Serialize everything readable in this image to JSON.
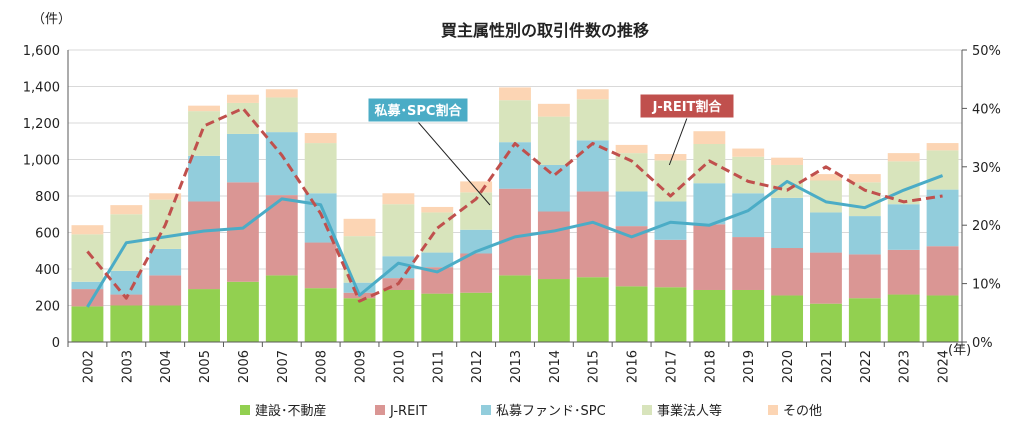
{
  "chart_data": {
    "type": "bar",
    "stacked": true,
    "title": "買主属性別の取引件数の推移",
    "y_unit_label": "（件）",
    "x_unit_label": "(年)",
    "categories": [
      "2002",
      "2003",
      "2004",
      "2005",
      "2006",
      "2007",
      "2008",
      "2009",
      "2010",
      "2011",
      "2012",
      "2013",
      "2014",
      "2015",
      "2016",
      "2017",
      "2018",
      "2019",
      "2020",
      "2021",
      "2022",
      "2023",
      "2024"
    ],
    "ylim": [
      0,
      1600
    ],
    "y_ticks": [
      0,
      200,
      400,
      600,
      800,
      1000,
      1200,
      1400,
      1600
    ],
    "y_tick_labels": [
      "0",
      "200",
      "400",
      "600",
      "800",
      "1,000",
      "1,200",
      "1,400",
      "1,600"
    ],
    "y2lim": [
      0,
      50
    ],
    "y2_ticks": [
      0,
      10,
      20,
      30,
      40,
      50
    ],
    "y2_tick_labels": [
      "0%",
      "10%",
      "20%",
      "30%",
      "40%",
      "50%"
    ],
    "series": [
      {
        "name": "建設･不動産",
        "color": "#92d050",
        "values": [
          195,
          200,
          200,
          290,
          330,
          365,
          295,
          240,
          285,
          265,
          270,
          365,
          345,
          355,
          305,
          300,
          285,
          285,
          255,
          210,
          240,
          260,
          255
        ]
      },
      {
        "name": "J-REIT",
        "color": "#da9694",
        "values": [
          95,
          60,
          165,
          480,
          545,
          440,
          250,
          30,
          65,
          145,
          215,
          475,
          370,
          470,
          330,
          260,
          360,
          290,
          260,
          280,
          240,
          245,
          270
        ]
      },
      {
        "name": "私募ファンド･SPC",
        "color": "#92cddc",
        "values": [
          40,
          130,
          145,
          250,
          265,
          345,
          270,
          55,
          120,
          80,
          130,
          255,
          255,
          280,
          190,
          210,
          225,
          240,
          275,
          220,
          210,
          250,
          310
        ]
      },
      {
        "name": "事業法人等",
        "color": "#d8e4bc",
        "values": [
          260,
          310,
          270,
          245,
          170,
          190,
          275,
          255,
          285,
          220,
          205,
          230,
          265,
          225,
          210,
          225,
          215,
          200,
          180,
          175,
          185,
          235,
          215
        ]
      },
      {
        "name": "その他",
        "color": "#fcd5b4",
        "values": [
          50,
          50,
          35,
          30,
          45,
          45,
          55,
          95,
          60,
          30,
          60,
          70,
          70,
          55,
          45,
          35,
          70,
          45,
          40,
          35,
          45,
          45,
          40
        ]
      }
    ],
    "lines": [
      {
        "name": "私募･SPC割合",
        "color": "#4bacc6",
        "style": "solid",
        "axis": "right",
        "values": [
          6,
          17,
          18,
          19,
          19.5,
          24.5,
          23.5,
          8,
          13.5,
          12,
          15.5,
          18,
          19,
          20.5,
          18,
          20.5,
          20,
          22.5,
          27.5,
          24,
          23,
          26,
          28.5
        ]
      },
      {
        "name": "J-REIT割合",
        "color": "#c0504d",
        "style": "dashed",
        "axis": "right",
        "values": [
          15.5,
          7.5,
          20,
          37,
          40,
          32,
          22,
          7,
          10,
          19.5,
          24.5,
          34,
          28.5,
          34,
          31,
          25,
          31,
          27.5,
          26,
          30,
          26,
          24,
          25
        ]
      }
    ],
    "legend": {
      "position": "bottom",
      "items": [
        "建設･不動産",
        "J-REIT",
        "私募ファンド･SPC",
        "事業法人等",
        "その他"
      ]
    },
    "callouts": [
      {
        "text": "私募･SPC割合",
        "color": "#4bacc6",
        "target_series": "私募･SPC割合",
        "target_index": 13
      },
      {
        "text": "J-REIT割合",
        "color": "#c0504d",
        "target_series": "J-REIT割合",
        "target_index": 16
      }
    ]
  }
}
